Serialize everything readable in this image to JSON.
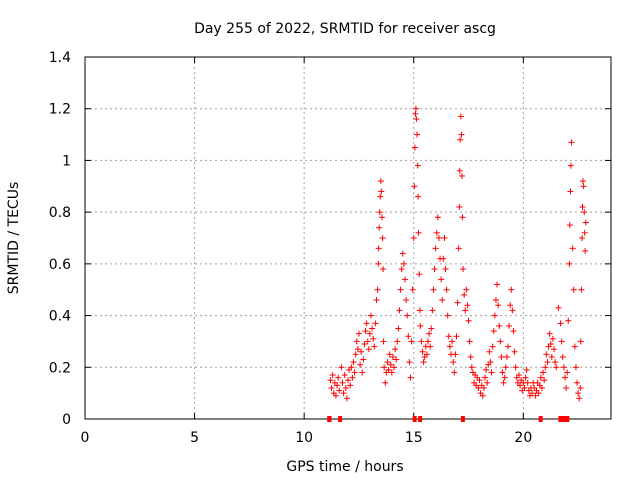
{
  "chart_data": {
    "type": "scatter",
    "title": "Day 255 of 2022, SRMTID for receiver ascg",
    "xlabel": "GPS time / hours",
    "ylabel": "SRMTID / TECUs",
    "xlim": [
      0,
      24
    ],
    "ylim": [
      0,
      1.4
    ],
    "xticks": [
      0,
      5,
      10,
      15,
      20
    ],
    "xtick_labels": [
      "0",
      "5",
      "10",
      "15",
      "20"
    ],
    "yticks": [
      0,
      0.2,
      0.4,
      0.6,
      0.8,
      1.0,
      1.2,
      1.4
    ],
    "ytick_labels": [
      "0",
      "0.2",
      "0.4",
      "0.6",
      "0.8",
      "1",
      "1.2",
      "1.4"
    ],
    "grid": true,
    "marker": "+",
    "color": "#ff0000",
    "series": [
      {
        "name": "SRMTID",
        "points": [
          [
            11.2,
            0.15
          ],
          [
            11.25,
            0.12
          ],
          [
            11.3,
            0.17
          ],
          [
            11.35,
            0.1
          ],
          [
            11.4,
            0.14
          ],
          [
            11.45,
            0.09
          ],
          [
            11.5,
            0.13
          ],
          [
            11.55,
            0.16
          ],
          [
            11.6,
            0.11
          ],
          [
            11.7,
            0.2
          ],
          [
            11.75,
            0.14
          ],
          [
            11.8,
            0.1
          ],
          [
            11.85,
            0.17
          ],
          [
            11.9,
            0.12
          ],
          [
            11.95,
            0.08
          ],
          [
            12.0,
            0.15
          ],
          [
            12.05,
            0.19
          ],
          [
            12.1,
            0.13
          ],
          [
            12.15,
            0.2
          ],
          [
            12.2,
            0.16
          ],
          [
            12.25,
            0.22
          ],
          [
            12.3,
            0.18
          ],
          [
            12.35,
            0.25
          ],
          [
            12.4,
            0.3
          ],
          [
            12.45,
            0.27
          ],
          [
            12.5,
            0.33
          ],
          [
            12.55,
            0.21
          ],
          [
            12.6,
            0.26
          ],
          [
            12.65,
            0.18
          ],
          [
            12.7,
            0.23
          ],
          [
            12.75,
            0.29
          ],
          [
            12.8,
            0.34
          ],
          [
            12.85,
            0.37
          ],
          [
            12.9,
            0.3
          ],
          [
            12.95,
            0.27
          ],
          [
            13.0,
            0.33
          ],
          [
            13.05,
            0.4
          ],
          [
            13.1,
            0.35
          ],
          [
            13.15,
            0.31
          ],
          [
            13.2,
            0.28
          ],
          [
            13.25,
            0.37
          ],
          [
            13.3,
            0.46
          ],
          [
            13.35,
            0.5
          ],
          [
            13.38,
            0.6
          ],
          [
            13.4,
            0.66
          ],
          [
            13.42,
            0.74
          ],
          [
            13.45,
            0.8
          ],
          [
            13.47,
            0.86
          ],
          [
            13.5,
            0.92
          ],
          [
            13.52,
            0.88
          ],
          [
            13.55,
            0.78
          ],
          [
            13.58,
            0.7
          ],
          [
            13.6,
            0.58
          ],
          [
            13.62,
            0.3
          ],
          [
            13.65,
            0.2
          ],
          [
            13.7,
            0.14
          ],
          [
            13.75,
            0.18
          ],
          [
            13.8,
            0.22
          ],
          [
            13.85,
            0.19
          ],
          [
            13.9,
            0.25
          ],
          [
            13.95,
            0.21
          ],
          [
            14.0,
            0.18
          ],
          [
            14.05,
            0.24
          ],
          [
            14.1,
            0.2
          ],
          [
            14.15,
            0.27
          ],
          [
            14.2,
            0.23
          ],
          [
            14.25,
            0.3
          ],
          [
            14.3,
            0.35
          ],
          [
            14.35,
            0.42
          ],
          [
            14.4,
            0.5
          ],
          [
            14.45,
            0.58
          ],
          [
            14.5,
            0.64
          ],
          [
            14.55,
            0.6
          ],
          [
            14.6,
            0.54
          ],
          [
            14.65,
            0.46
          ],
          [
            14.7,
            0.4
          ],
          [
            14.75,
            0.32
          ],
          [
            14.8,
            0.22
          ],
          [
            14.85,
            0.16
          ],
          [
            14.9,
            0.3
          ],
          [
            14.95,
            0.5
          ],
          [
            15.0,
            0.7
          ],
          [
            15.03,
            0.9
          ],
          [
            15.05,
            1.05
          ],
          [
            15.08,
            1.18
          ],
          [
            15.1,
            1.2
          ],
          [
            15.12,
            1.16
          ],
          [
            15.15,
            1.1
          ],
          [
            15.18,
            0.98
          ],
          [
            15.2,
            0.86
          ],
          [
            15.22,
            0.72
          ],
          [
            15.25,
            0.56
          ],
          [
            15.28,
            0.42
          ],
          [
            15.3,
            0.36
          ],
          [
            15.35,
            0.3
          ],
          [
            15.4,
            0.26
          ],
          [
            15.45,
            0.22
          ],
          [
            15.5,
            0.24
          ],
          [
            15.55,
            0.28
          ],
          [
            15.6,
            0.25
          ],
          [
            15.65,
            0.3
          ],
          [
            15.7,
            0.33
          ],
          [
            15.75,
            0.28
          ],
          [
            15.8,
            0.35
          ],
          [
            15.85,
            0.42
          ],
          [
            15.9,
            0.5
          ],
          [
            15.95,
            0.58
          ],
          [
            16.0,
            0.66
          ],
          [
            16.05,
            0.72
          ],
          [
            16.1,
            0.78
          ],
          [
            16.15,
            0.7
          ],
          [
            16.2,
            0.62
          ],
          [
            16.25,
            0.54
          ],
          [
            16.3,
            0.46
          ],
          [
            16.35,
            0.62
          ],
          [
            16.4,
            0.7
          ],
          [
            16.45,
            0.58
          ],
          [
            16.5,
            0.5
          ],
          [
            16.55,
            0.4
          ],
          [
            16.6,
            0.32
          ],
          [
            16.65,
            0.28
          ],
          [
            16.7,
            0.25
          ],
          [
            16.75,
            0.3
          ],
          [
            16.8,
            0.22
          ],
          [
            16.85,
            0.18
          ],
          [
            16.9,
            0.25
          ],
          [
            16.95,
            0.32
          ],
          [
            17.0,
            0.45
          ],
          [
            17.05,
            0.66
          ],
          [
            17.08,
            0.82
          ],
          [
            17.1,
            0.96
          ],
          [
            17.12,
            1.08
          ],
          [
            17.15,
            1.17
          ],
          [
            17.18,
            1.1
          ],
          [
            17.2,
            0.94
          ],
          [
            17.22,
            0.78
          ],
          [
            17.25,
            0.58
          ],
          [
            17.3,
            0.48
          ],
          [
            17.35,
            0.42
          ],
          [
            17.4,
            0.5
          ],
          [
            17.45,
            0.44
          ],
          [
            17.5,
            0.38
          ],
          [
            17.55,
            0.3
          ],
          [
            17.6,
            0.24
          ],
          [
            17.65,
            0.2
          ],
          [
            17.7,
            0.18
          ],
          [
            17.75,
            0.14
          ],
          [
            17.8,
            0.17
          ],
          [
            17.85,
            0.13
          ],
          [
            17.9,
            0.16
          ],
          [
            17.95,
            0.12
          ],
          [
            18.0,
            0.15
          ],
          [
            18.05,
            0.1
          ],
          [
            18.1,
            0.13
          ],
          [
            18.15,
            0.09
          ],
          [
            18.2,
            0.12
          ],
          [
            18.25,
            0.16
          ],
          [
            18.3,
            0.19
          ],
          [
            18.35,
            0.14
          ],
          [
            18.4,
            0.21
          ],
          [
            18.45,
            0.26
          ],
          [
            18.5,
            0.22
          ],
          [
            18.55,
            0.18
          ],
          [
            18.6,
            0.28
          ],
          [
            18.65,
            0.34
          ],
          [
            18.7,
            0.4
          ],
          [
            18.75,
            0.46
          ],
          [
            18.8,
            0.52
          ],
          [
            18.85,
            0.44
          ],
          [
            18.9,
            0.36
          ],
          [
            18.95,
            0.3
          ],
          [
            19.0,
            0.24
          ],
          [
            19.05,
            0.18
          ],
          [
            19.1,
            0.14
          ],
          [
            19.15,
            0.16
          ],
          [
            19.2,
            0.2
          ],
          [
            19.25,
            0.24
          ],
          [
            19.3,
            0.28
          ],
          [
            19.35,
            0.36
          ],
          [
            19.4,
            0.44
          ],
          [
            19.45,
            0.5
          ],
          [
            19.5,
            0.42
          ],
          [
            19.55,
            0.34
          ],
          [
            19.6,
            0.26
          ],
          [
            19.65,
            0.2
          ],
          [
            19.7,
            0.16
          ],
          [
            19.75,
            0.14
          ],
          [
            19.8,
            0.17
          ],
          [
            19.85,
            0.13
          ],
          [
            19.9,
            0.15
          ],
          [
            19.95,
            0.11
          ],
          [
            20.0,
            0.14
          ],
          [
            20.05,
            0.12
          ],
          [
            20.1,
            0.16
          ],
          [
            20.15,
            0.19
          ],
          [
            20.2,
            0.14
          ],
          [
            20.25,
            0.11
          ],
          [
            20.3,
            0.09
          ],
          [
            20.35,
            0.12
          ],
          [
            20.4,
            0.1
          ],
          [
            20.45,
            0.14
          ],
          [
            20.5,
            0.12
          ],
          [
            20.55,
            0.09
          ],
          [
            20.6,
            0.11
          ],
          [
            20.65,
            0.14
          ],
          [
            20.7,
            0.1
          ],
          [
            20.75,
            0.13
          ],
          [
            20.8,
            0.16
          ],
          [
            20.85,
            0.12
          ],
          [
            20.9,
            0.18
          ],
          [
            20.95,
            0.15
          ],
          [
            21.0,
            0.2
          ],
          [
            21.05,
            0.25
          ],
          [
            21.1,
            0.22
          ],
          [
            21.15,
            0.28
          ],
          [
            21.2,
            0.33
          ],
          [
            21.25,
            0.29
          ],
          [
            21.3,
            0.24
          ],
          [
            21.35,
            0.31
          ],
          [
            21.4,
            0.27
          ],
          [
            21.45,
            0.22
          ],
          [
            21.5,
            0.2
          ],
          [
            21.6,
            0.43
          ],
          [
            21.7,
            0.37
          ],
          [
            21.75,
            0.3
          ],
          [
            21.8,
            0.24
          ],
          [
            21.85,
            0.2
          ],
          [
            21.9,
            0.16
          ],
          [
            21.95,
            0.12
          ],
          [
            22.0,
            0.18
          ],
          [
            22.05,
            0.38
          ],
          [
            22.1,
            0.6
          ],
          [
            22.12,
            0.75
          ],
          [
            22.15,
            0.88
          ],
          [
            22.17,
            0.98
          ],
          [
            22.2,
            1.07
          ],
          [
            22.25,
            0.66
          ],
          [
            22.3,
            0.5
          ],
          [
            22.35,
            0.28
          ],
          [
            22.4,
            0.2
          ],
          [
            22.45,
            0.14
          ],
          [
            22.5,
            0.1
          ],
          [
            22.55,
            0.08
          ],
          [
            22.6,
            0.12
          ],
          [
            22.62,
            0.3
          ],
          [
            22.65,
            0.5
          ],
          [
            22.68,
            0.7
          ],
          [
            22.7,
            0.82
          ],
          [
            22.72,
            0.92
          ],
          [
            22.75,
            0.9
          ],
          [
            22.78,
            0.8
          ],
          [
            22.8,
            0.72
          ],
          [
            22.82,
            0.65
          ],
          [
            22.85,
            0.76
          ]
        ]
      }
    ],
    "gap_markers_y": 0,
    "gap_marker_ranges": [
      [
        11.05,
        11.25
      ],
      [
        11.55,
        11.65
      ],
      [
        14.95,
        15.0
      ],
      [
        15.2,
        15.3
      ],
      [
        17.15,
        17.25
      ],
      [
        20.7,
        20.8
      ],
      [
        21.6,
        22.1
      ]
    ]
  }
}
